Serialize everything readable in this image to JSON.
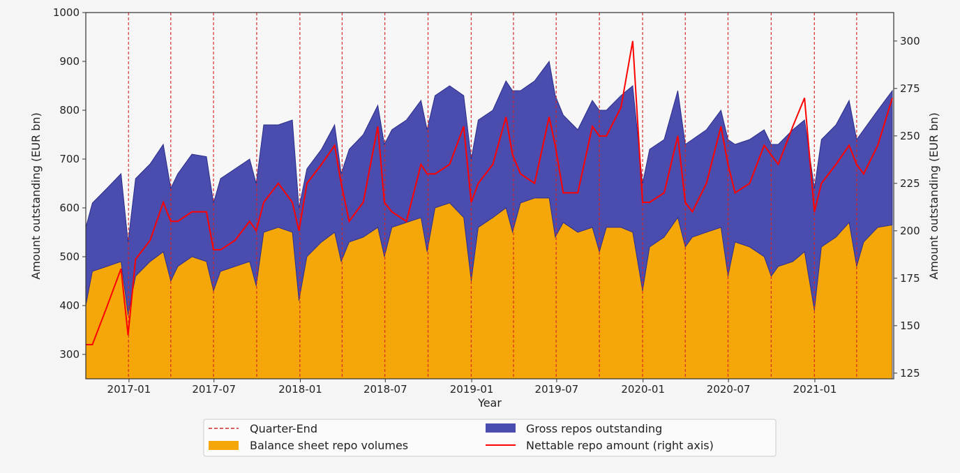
{
  "chart_data": {
    "type": "area",
    "xlabel": "Year",
    "ylabel": "Amount outstanding (EUR bn)",
    "ylabel_right": "Amount outstanding (EUR bn)",
    "xlim": [
      "2016-10-01",
      "2021-06-18"
    ],
    "ylim": [
      250,
      1000
    ],
    "ylim_right": [
      122,
      315
    ],
    "x_ticks": [
      "2017-01",
      "2017-07",
      "2018-01",
      "2018-07",
      "2019-01",
      "2019-07",
      "2020-01",
      "2020-07",
      "2021-01"
    ],
    "y_ticks": [
      300,
      400,
      500,
      600,
      700,
      800,
      900,
      1000
    ],
    "y_ticks_right": [
      125,
      150,
      175,
      200,
      225,
      250,
      275,
      300
    ],
    "grid": false,
    "legend_placement": "bottom-center-outside",
    "quarter_ends": [
      "2016-12-31",
      "2017-03-31",
      "2017-06-30",
      "2017-09-30",
      "2017-12-31",
      "2018-03-31",
      "2018-06-30",
      "2018-09-30",
      "2018-12-31",
      "2019-03-31",
      "2019-06-30",
      "2019-09-30",
      "2019-12-31",
      "2020-03-31",
      "2020-06-30",
      "2020-09-30",
      "2020-12-31",
      "2021-03-31"
    ],
    "dates": [
      "2016-10-01",
      "2016-10-15",
      "2016-11-15",
      "2016-12-15",
      "2016-12-30",
      "2017-01-15",
      "2017-02-15",
      "2017-03-15",
      "2017-03-31",
      "2017-04-15",
      "2017-05-15",
      "2017-06-15",
      "2017-06-30",
      "2017-07-15",
      "2017-08-15",
      "2017-09-15",
      "2017-09-29",
      "2017-10-15",
      "2017-11-15",
      "2017-12-15",
      "2017-12-29",
      "2018-01-15",
      "2018-02-15",
      "2018-03-15",
      "2018-03-29",
      "2018-04-15",
      "2018-05-15",
      "2018-06-15",
      "2018-06-29",
      "2018-07-15",
      "2018-08-15",
      "2018-09-15",
      "2018-09-28",
      "2018-10-15",
      "2018-11-15",
      "2018-12-15",
      "2018-12-31",
      "2019-01-15",
      "2019-02-15",
      "2019-03-15",
      "2019-03-29",
      "2019-04-15",
      "2019-05-15",
      "2019-06-15",
      "2019-06-28",
      "2019-07-15",
      "2019-08-15",
      "2019-09-15",
      "2019-09-30",
      "2019-10-15",
      "2019-11-15",
      "2019-12-10",
      "2019-12-31",
      "2020-01-15",
      "2020-02-15",
      "2020-03-15",
      "2020-03-31",
      "2020-04-15",
      "2020-05-15",
      "2020-06-15",
      "2020-06-30",
      "2020-07-15",
      "2020-08-15",
      "2020-09-15",
      "2020-09-30",
      "2020-10-15",
      "2020-11-15",
      "2020-12-10",
      "2020-12-31",
      "2021-01-15",
      "2021-02-15",
      "2021-03-15",
      "2021-03-31",
      "2021-04-15",
      "2021-05-15",
      "2021-06-15"
    ],
    "series": [
      {
        "name": "Gross repos outstanding",
        "axis": "left",
        "color": "#4b4dae",
        "values": [
          560,
          610,
          640,
          670,
          530,
          660,
          690,
          730,
          640,
          670,
          710,
          705,
          610,
          660,
          680,
          700,
          650,
          770,
          770,
          780,
          600,
          680,
          720,
          770,
          670,
          720,
          750,
          810,
          730,
          760,
          780,
          820,
          760,
          830,
          850,
          830,
          700,
          780,
          800,
          860,
          840,
          840,
          860,
          900,
          830,
          790,
          760,
          820,
          800,
          800,
          830,
          850,
          650,
          720,
          740,
          840,
          730,
          740,
          760,
          800,
          740,
          730,
          740,
          760,
          730,
          730,
          760,
          780,
          640,
          740,
          770,
          820,
          740,
          760,
          800,
          840
        ]
      },
      {
        "name": "Balance sheet repo volumes",
        "axis": "left",
        "color": "#f5a608",
        "values": [
          400,
          470,
          480,
          490,
          380,
          460,
          490,
          510,
          450,
          480,
          500,
          490,
          430,
          470,
          480,
          490,
          440,
          550,
          560,
          550,
          410,
          500,
          530,
          550,
          490,
          530,
          540,
          560,
          500,
          560,
          570,
          580,
          510,
          600,
          610,
          580,
          450,
          560,
          580,
          600,
          550,
          610,
          620,
          620,
          540,
          570,
          550,
          560,
          510,
          560,
          560,
          550,
          430,
          520,
          540,
          580,
          520,
          540,
          550,
          560,
          460,
          530,
          520,
          500,
          460,
          480,
          490,
          510,
          390,
          520,
          540,
          570,
          480,
          530,
          560,
          565
        ]
      },
      {
        "name": "Nettable repo amount (right axis)",
        "axis": "right",
        "color": "#ff0000",
        "values": [
          140,
          140,
          160,
          180,
          145,
          185,
          195,
          215,
          205,
          205,
          210,
          210,
          190,
          190,
          195,
          205,
          200,
          215,
          225,
          215,
          200,
          225,
          235,
          245,
          225,
          205,
          215,
          255,
          215,
          210,
          205,
          235,
          230,
          230,
          235,
          255,
          215,
          225,
          235,
          260,
          240,
          230,
          225,
          260,
          245,
          220,
          220,
          255,
          250,
          250,
          265,
          300,
          215,
          215,
          220,
          250,
          215,
          210,
          225,
          255,
          235,
          220,
          225,
          245,
          240,
          235,
          255,
          270,
          210,
          225,
          235,
          245,
          235,
          230,
          245,
          270
        ]
      }
    ],
    "quarter_end_color": "#d62728"
  },
  "legend": {
    "quarter_end": "Quarter-End",
    "balance_sheet": "Balance sheet repo volumes",
    "gross": "Gross repos outstanding",
    "nettable": "Nettable repo amount (right axis)"
  }
}
